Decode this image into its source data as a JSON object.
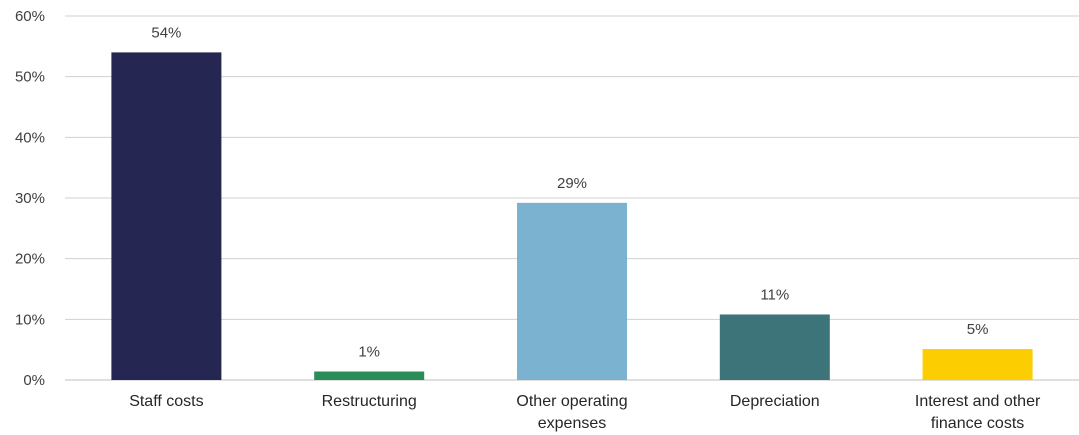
{
  "chart_data": {
    "type": "bar",
    "categories": [
      "Staff costs",
      "Restructuring",
      "Other operating expenses",
      "Depreciation",
      "Interest and other finance costs"
    ],
    "category_label_lines": [
      [
        "Staff costs"
      ],
      [
        "Restructuring"
      ],
      [
        "Other operating",
        "expenses"
      ],
      [
        "Depreciation"
      ],
      [
        "Interest and other",
        "finance costs"
      ]
    ],
    "values": [
      54,
      1.4,
      29.2,
      10.8,
      5.1
    ],
    "data_labels": [
      "54%",
      "1%",
      "29%",
      "11%",
      "5%"
    ],
    "colors": [
      "#252651",
      "#2a8c56",
      "#7ab2d0",
      "#3d7479",
      "#fccd00"
    ],
    "ylim": [
      0,
      60
    ],
    "yticks": [
      0,
      10,
      20,
      30,
      40,
      50,
      60
    ],
    "ytick_labels": [
      "0%",
      "10%",
      "20%",
      "30%",
      "40%",
      "50%",
      "60%"
    ],
    "grid": true,
    "legend": "none",
    "title": "",
    "xlabel": "",
    "ylabel": ""
  }
}
